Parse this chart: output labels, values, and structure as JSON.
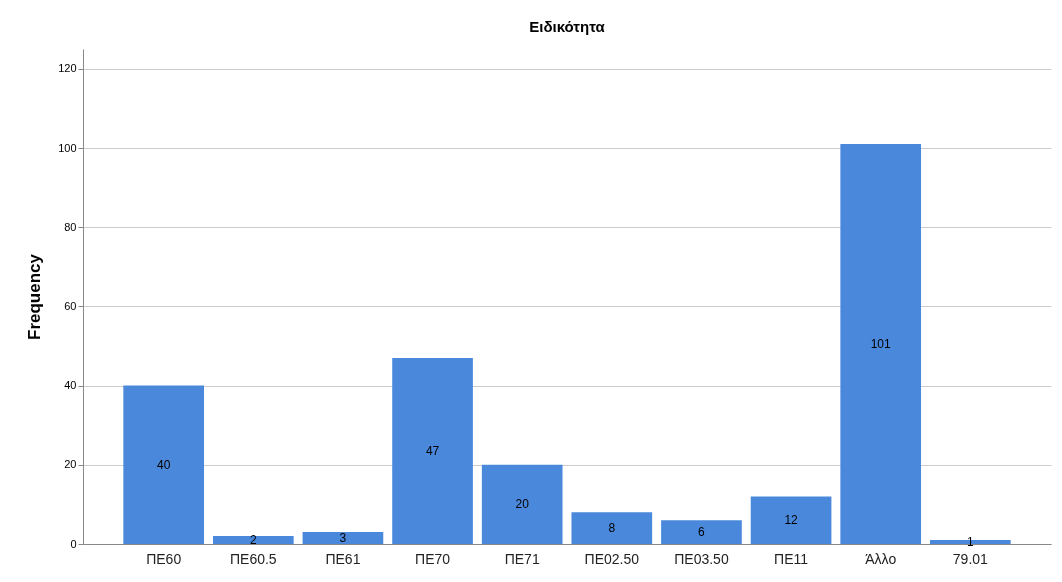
{
  "chart_data": {
    "type": "bar",
    "title": "Ειδικότητα",
    "ylabel": "Frequency",
    "categories": [
      "ΠΕ60",
      "ΠΕ60.5",
      "ΠΕ61",
      "ΠΕ70",
      "ΠΕ71",
      "ΠΕ02.50",
      "ΠΕ03.50",
      "ΠΕ11",
      "Άλλο",
      "79.01"
    ],
    "values": [
      40,
      2,
      3,
      47,
      20,
      8,
      6,
      12,
      101,
      1
    ],
    "color": "#4a88dc",
    "ylim": [
      0,
      125
    ],
    "yticks": [
      0,
      20,
      40,
      60,
      80,
      100,
      120
    ],
    "grid": "y",
    "data_labels": true
  }
}
